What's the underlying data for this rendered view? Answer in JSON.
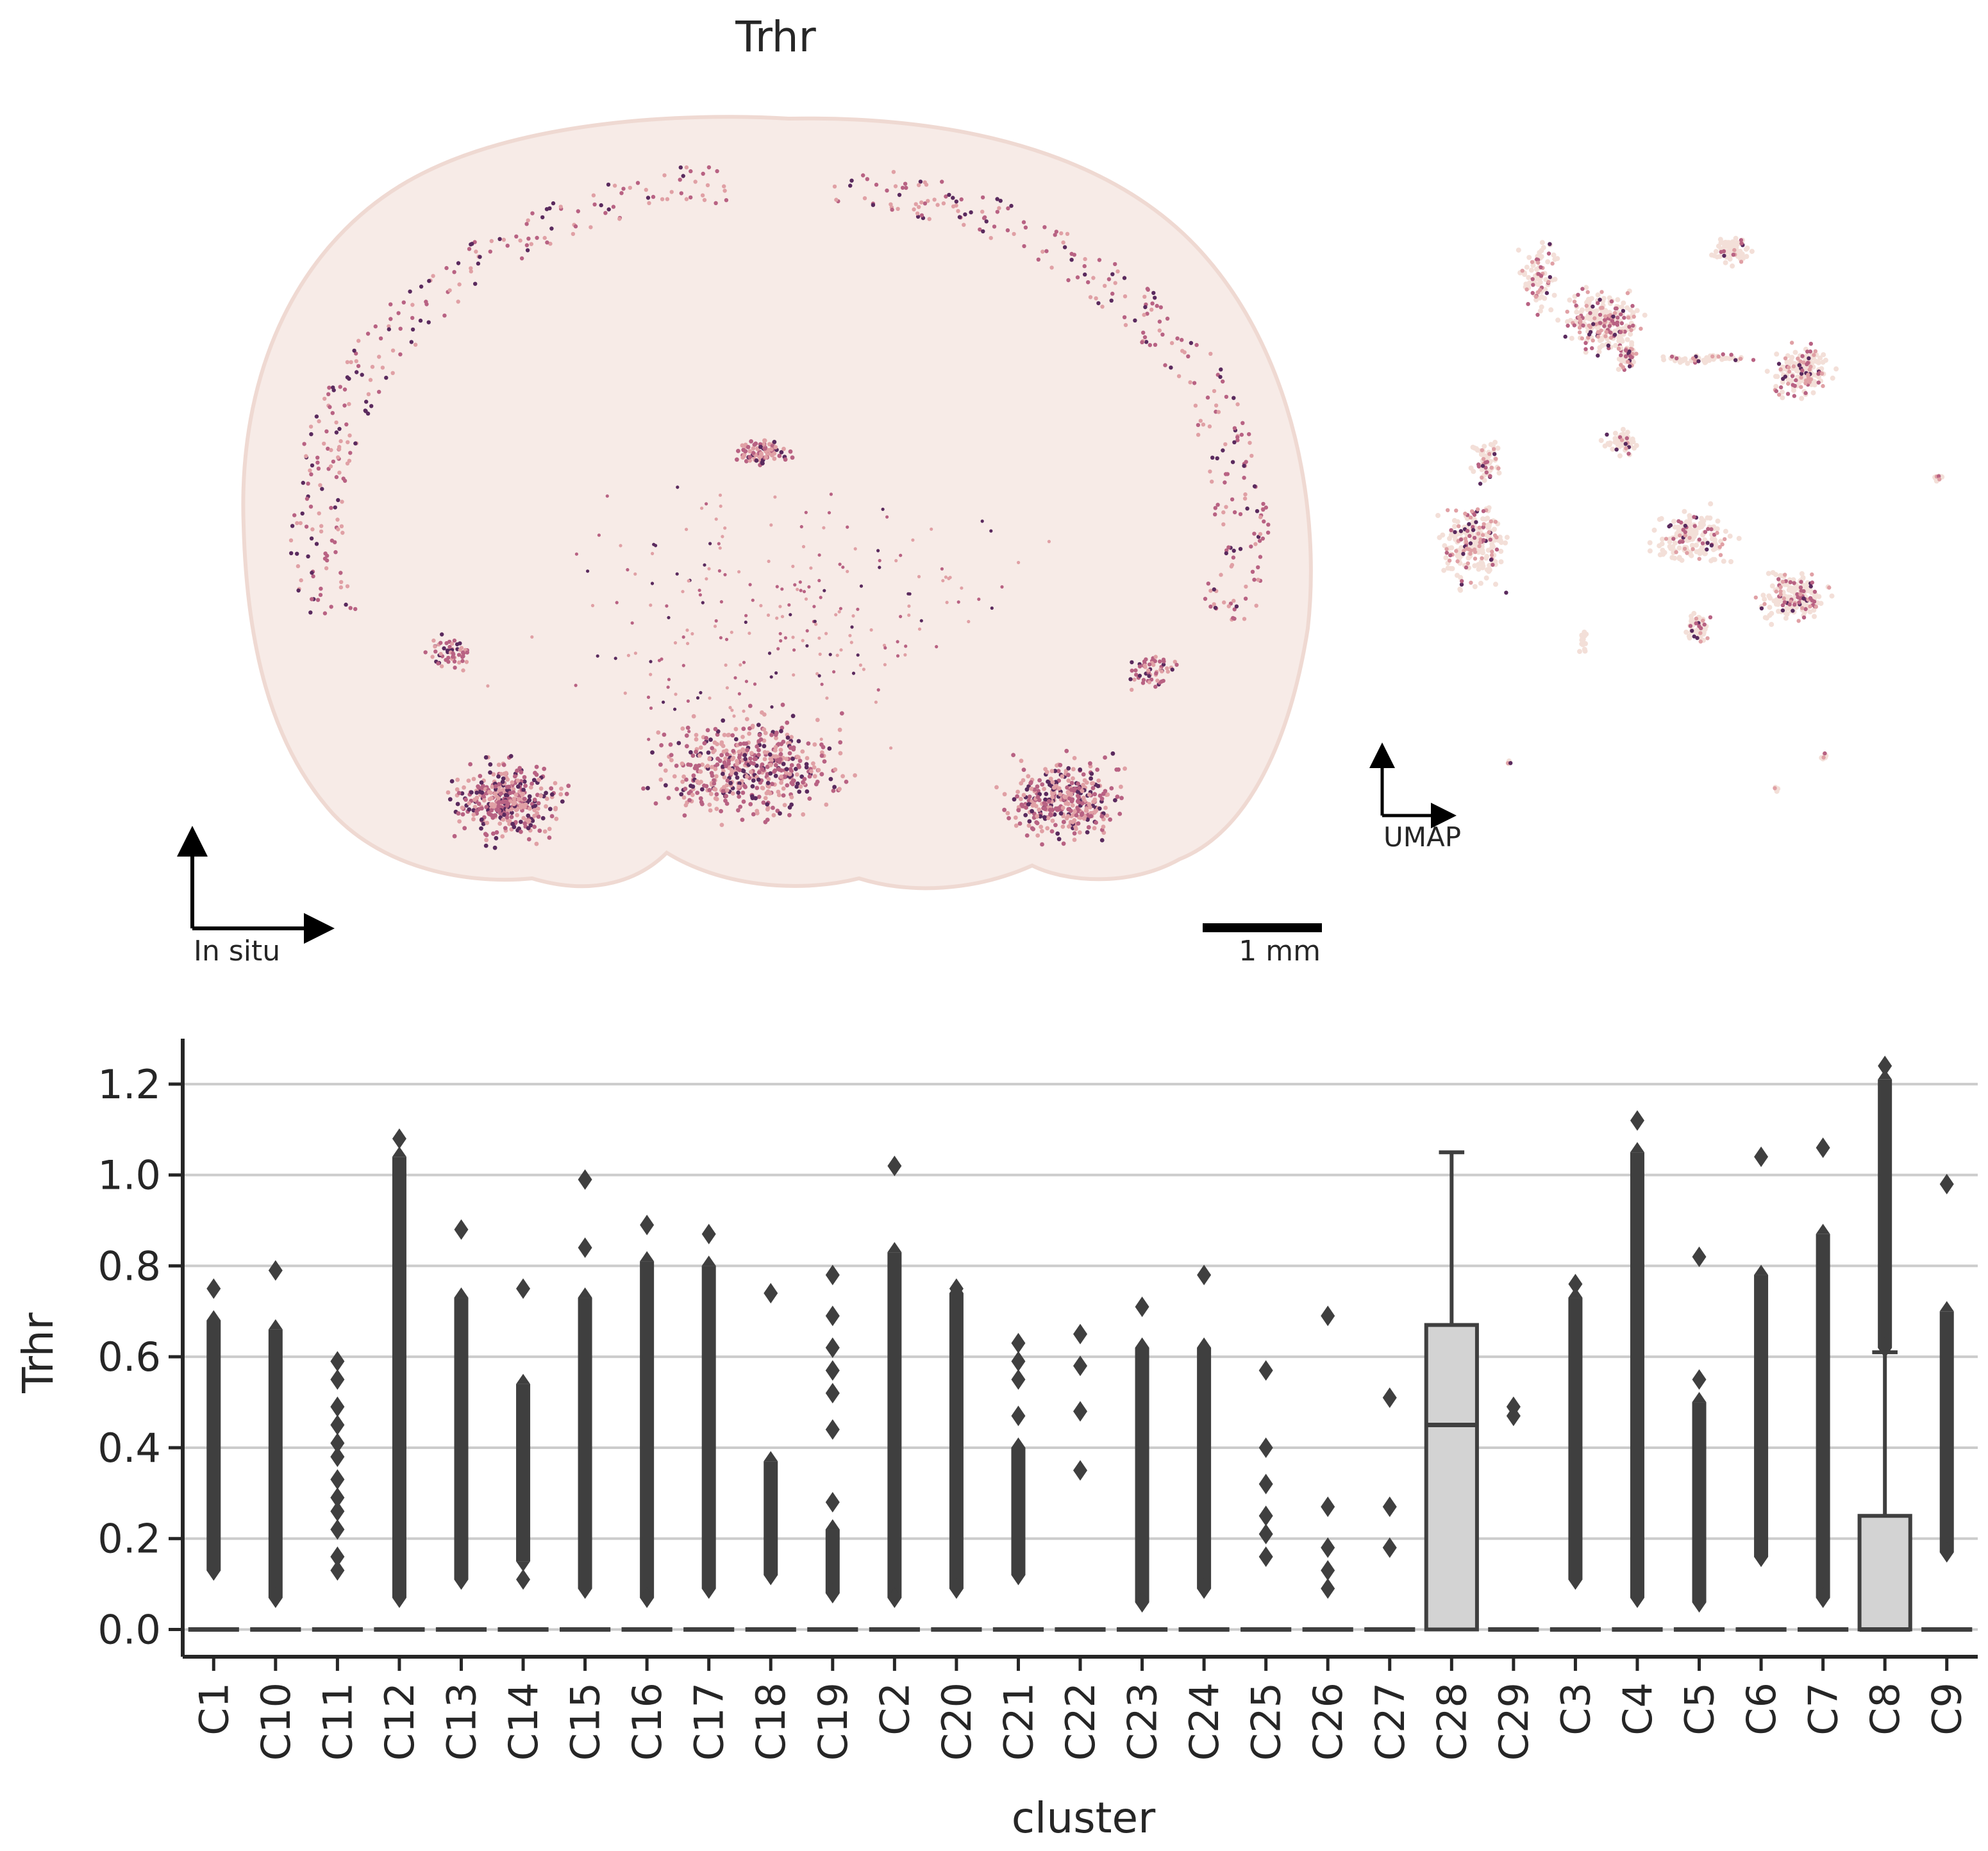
{
  "figure": {
    "title": "Trhr",
    "insitu_label": "In situ",
    "umap_label": "UMAP",
    "scale_bar_label": "1 mm"
  },
  "colors": {
    "low": "#f3dfd8",
    "mid": "#e0a0a5",
    "high": "#b86283",
    "max": "#5a2a5e",
    "box_fill": "#d3d3d3",
    "box_line": "#3f3f3f",
    "grid": "#cccccc"
  },
  "chart_data": {
    "type": "box",
    "title": "",
    "xlabel": "cluster",
    "ylabel": "Trhr",
    "ylim": [
      -0.06,
      1.3
    ],
    "yticks": [
      0.0,
      0.2,
      0.4,
      0.6,
      0.8,
      1.0,
      1.2
    ],
    "ytick_labels": [
      "0.0",
      "0.2",
      "0.4",
      "0.6",
      "0.8",
      "1.0",
      "1.2"
    ],
    "grid": "horizontal",
    "categories": [
      "C1",
      "C10",
      "C11",
      "C12",
      "C13",
      "C14",
      "C15",
      "C16",
      "C17",
      "C18",
      "C19",
      "C2",
      "C20",
      "C21",
      "C22",
      "C23",
      "C24",
      "C25",
      "C26",
      "C27",
      "C28",
      "C29",
      "C3",
      "C4",
      "C5",
      "C6",
      "C7",
      "C8",
      "C9"
    ],
    "boxes": [
      {
        "cluster": "C1",
        "q1": 0,
        "median": 0,
        "q3": 0,
        "whisker_low": 0,
        "whisker_high": 0,
        "outliers": [
          0.13,
          0.75
        ],
        "dense_range": [
          0.13,
          0.68
        ]
      },
      {
        "cluster": "C10",
        "q1": 0,
        "median": 0,
        "q3": 0,
        "whisker_low": 0,
        "whisker_high": 0,
        "outliers": [
          0.07,
          0.79
        ],
        "dense_range": [
          0.07,
          0.66
        ]
      },
      {
        "cluster": "C11",
        "q1": 0,
        "median": 0,
        "q3": 0,
        "whisker_low": 0,
        "whisker_high": 0,
        "outliers": [
          0.13,
          0.16,
          0.22,
          0.26,
          0.29,
          0.33,
          0.38,
          0.41,
          0.45,
          0.49,
          0.55,
          0.59
        ],
        "dense_range": null
      },
      {
        "cluster": "C12",
        "q1": 0,
        "median": 0,
        "q3": 0,
        "whisker_low": 0,
        "whisker_high": 0,
        "outliers": [
          0.07,
          1.08
        ],
        "dense_range": [
          0.07,
          1.04
        ]
      },
      {
        "cluster": "C13",
        "q1": 0,
        "median": 0,
        "q3": 0,
        "whisker_low": 0,
        "whisker_high": 0,
        "outliers": [
          0.11,
          0.88
        ],
        "dense_range": [
          0.11,
          0.73
        ]
      },
      {
        "cluster": "C14",
        "q1": 0,
        "median": 0,
        "q3": 0,
        "whisker_low": 0,
        "whisker_high": 0,
        "outliers": [
          0.11,
          0.75
        ],
        "dense_range": [
          0.15,
          0.54
        ]
      },
      {
        "cluster": "C15",
        "q1": 0,
        "median": 0,
        "q3": 0,
        "whisker_low": 0,
        "whisker_high": 0,
        "outliers": [
          0.09,
          0.84,
          0.99
        ],
        "dense_range": [
          0.09,
          0.73
        ]
      },
      {
        "cluster": "C16",
        "q1": 0,
        "median": 0,
        "q3": 0,
        "whisker_low": 0,
        "whisker_high": 0,
        "outliers": [
          0.07,
          0.89
        ],
        "dense_range": [
          0.07,
          0.81
        ]
      },
      {
        "cluster": "C17",
        "q1": 0,
        "median": 0,
        "q3": 0,
        "whisker_low": 0,
        "whisker_high": 0,
        "outliers": [
          0.09,
          0.87
        ],
        "dense_range": [
          0.09,
          0.8
        ]
      },
      {
        "cluster": "C18",
        "q1": 0,
        "median": 0,
        "q3": 0,
        "whisker_low": 0,
        "whisker_high": 0,
        "outliers": [
          0.12,
          0.74
        ],
        "dense_range": [
          0.12,
          0.37
        ]
      },
      {
        "cluster": "C19",
        "q1": 0,
        "median": 0,
        "q3": 0,
        "whisker_low": 0,
        "whisker_high": 0,
        "outliers": [
          0.08,
          0.28,
          0.44,
          0.52,
          0.57,
          0.62,
          0.69,
          0.78
        ],
        "dense_range": [
          0.08,
          0.22
        ]
      },
      {
        "cluster": "C2",
        "q1": 0,
        "median": 0,
        "q3": 0,
        "whisker_low": 0,
        "whisker_high": 0,
        "outliers": [
          0.07,
          1.02
        ],
        "dense_range": [
          0.07,
          0.83
        ]
      },
      {
        "cluster": "C20",
        "q1": 0,
        "median": 0,
        "q3": 0,
        "whisker_low": 0,
        "whisker_high": 0,
        "outliers": [
          0.09,
          0.75
        ],
        "dense_range": [
          0.09,
          0.74
        ]
      },
      {
        "cluster": "C21",
        "q1": 0,
        "median": 0,
        "q3": 0,
        "whisker_low": 0,
        "whisker_high": 0,
        "outliers": [
          0.12,
          0.47,
          0.55,
          0.59,
          0.63
        ],
        "dense_range": [
          0.12,
          0.4
        ]
      },
      {
        "cluster": "C22",
        "q1": 0,
        "median": 0,
        "q3": 0,
        "whisker_low": 0,
        "whisker_high": 0,
        "outliers": [
          0.35,
          0.48,
          0.58,
          0.65
        ],
        "dense_range": null
      },
      {
        "cluster": "C23",
        "q1": 0,
        "median": 0,
        "q3": 0,
        "whisker_low": 0,
        "whisker_high": 0,
        "outliers": [
          0.06,
          0.71
        ],
        "dense_range": [
          0.06,
          0.62
        ]
      },
      {
        "cluster": "C24",
        "q1": 0,
        "median": 0,
        "q3": 0,
        "whisker_low": 0,
        "whisker_high": 0,
        "outliers": [
          0.09,
          0.78
        ],
        "dense_range": [
          0.09,
          0.62
        ]
      },
      {
        "cluster": "C25",
        "q1": 0,
        "median": 0,
        "q3": 0,
        "whisker_low": 0,
        "whisker_high": 0,
        "outliers": [
          0.16,
          0.21,
          0.25,
          0.32,
          0.4,
          0.57
        ],
        "dense_range": null
      },
      {
        "cluster": "C26",
        "q1": 0,
        "median": 0,
        "q3": 0,
        "whisker_low": 0,
        "whisker_high": 0,
        "outliers": [
          0.09,
          0.13,
          0.18,
          0.27,
          0.69
        ],
        "dense_range": null
      },
      {
        "cluster": "C27",
        "q1": 0,
        "median": 0,
        "q3": 0,
        "whisker_low": 0,
        "whisker_high": 0,
        "outliers": [
          0.18,
          0.27,
          0.51
        ],
        "dense_range": null
      },
      {
        "cluster": "C28",
        "q1": 0,
        "median": 0.45,
        "q3": 0.67,
        "whisker_low": 0,
        "whisker_high": 1.05,
        "outliers": [],
        "dense_range": null
      },
      {
        "cluster": "C29",
        "q1": 0,
        "median": 0,
        "q3": 0,
        "whisker_low": 0,
        "whisker_high": 0,
        "outliers": [
          0.47,
          0.49
        ],
        "dense_range": null
      },
      {
        "cluster": "C3",
        "q1": 0,
        "median": 0,
        "q3": 0,
        "whisker_low": 0,
        "whisker_high": 0,
        "outliers": [
          0.11,
          0.76
        ],
        "dense_range": [
          0.11,
          0.73
        ]
      },
      {
        "cluster": "C4",
        "q1": 0,
        "median": 0,
        "q3": 0,
        "whisker_low": 0,
        "whisker_high": 0,
        "outliers": [
          0.07,
          1.12
        ],
        "dense_range": [
          0.07,
          1.05
        ]
      },
      {
        "cluster": "C5",
        "q1": 0,
        "median": 0,
        "q3": 0,
        "whisker_low": 0,
        "whisker_high": 0,
        "outliers": [
          0.06,
          0.55,
          0.82
        ],
        "dense_range": [
          0.06,
          0.5
        ]
      },
      {
        "cluster": "C6",
        "q1": 0,
        "median": 0,
        "q3": 0,
        "whisker_low": 0,
        "whisker_high": 0,
        "outliers": [
          0.16,
          1.04
        ],
        "dense_range": [
          0.16,
          0.78
        ]
      },
      {
        "cluster": "C7",
        "q1": 0,
        "median": 0,
        "q3": 0,
        "whisker_low": 0,
        "whisker_high": 0,
        "outliers": [
          0.07,
          1.06
        ],
        "dense_range": [
          0.07,
          0.87
        ]
      },
      {
        "cluster": "C8",
        "q1": 0,
        "median": 0,
        "q3": 0.25,
        "whisker_low": 0,
        "whisker_high": 0.61,
        "outliers": [
          0.62,
          1.24
        ],
        "dense_range": [
          0.62,
          1.21
        ]
      },
      {
        "cluster": "C9",
        "q1": 0,
        "median": 0,
        "q3": 0,
        "whisker_low": 0,
        "whisker_high": 0,
        "outliers": [
          0.17,
          0.98
        ],
        "dense_range": [
          0.17,
          0.7
        ]
      }
    ]
  }
}
